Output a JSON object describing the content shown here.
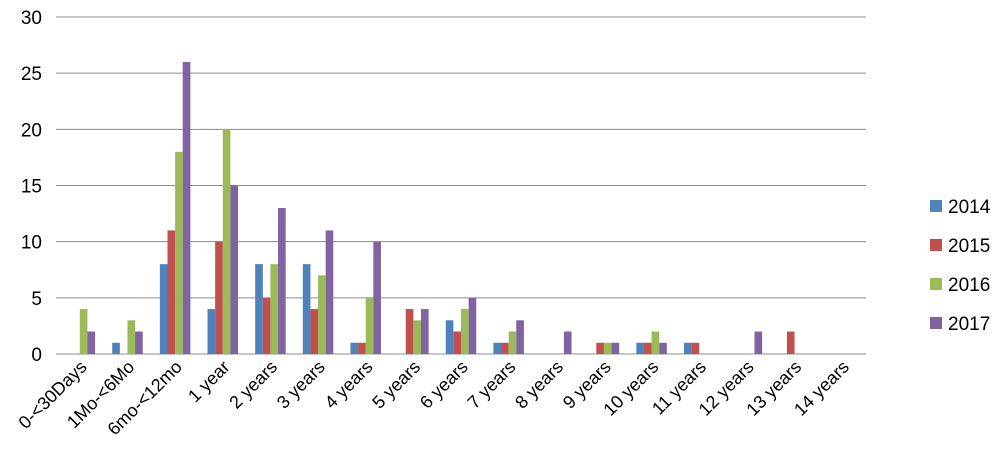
{
  "chart_data": {
    "type": "bar",
    "title": "",
    "xlabel": "",
    "ylabel": "",
    "ylim": [
      0,
      30
    ],
    "y_ticks": [
      "0",
      "5",
      "10",
      "15",
      "20",
      "25",
      "30"
    ],
    "grid": true,
    "legend_position": "right",
    "categories": [
      "0-<30Days",
      "1Mo-<6Mo",
      "6mo-<12mo",
      "1 year",
      "2 years",
      "3 years",
      "4 years",
      "5 years",
      "6 years",
      "7 years",
      "8 years",
      "9 years",
      "10 years",
      "11 years",
      "12 years",
      "13 years",
      "14 years"
    ],
    "series": [
      {
        "name": "2014",
        "color": "#4f81bd",
        "values": [
          0,
          1,
          8,
          4,
          8,
          8,
          1,
          0,
          3,
          1,
          0,
          0,
          1,
          1,
          0,
          0,
          0
        ]
      },
      {
        "name": "2015",
        "color": "#c0504d",
        "values": [
          0,
          0,
          11,
          10,
          5,
          4,
          1,
          4,
          2,
          1,
          0,
          1,
          1,
          1,
          0,
          2,
          0
        ]
      },
      {
        "name": "2016",
        "color": "#9bbb59",
        "values": [
          4,
          3,
          18,
          20,
          8,
          7,
          5,
          3,
          4,
          2,
          0,
          1,
          2,
          0,
          0,
          0,
          0
        ]
      },
      {
        "name": "2017",
        "color": "#8064a2",
        "values": [
          2,
          2,
          26,
          15,
          13,
          11,
          10,
          4,
          5,
          3,
          2,
          1,
          1,
          0,
          2,
          0,
          0
        ]
      }
    ]
  }
}
